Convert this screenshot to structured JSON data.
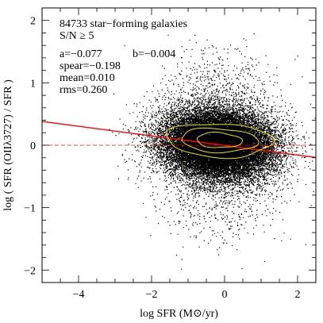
{
  "chart_data": {
    "type": "scatter",
    "xlabel": "log SFR (M⊙/yr)",
    "ylabel": "log ( SFR (OIIλ3727) / SFR )",
    "xlim": [
      -5,
      2.5
    ],
    "ylim": [
      -2.2,
      2.2
    ],
    "x_ticks": [
      -4,
      -2,
      0,
      2
    ],
    "x_tick_labels": [
      "−4",
      "−2",
      "0",
      "2"
    ],
    "y_ticks": [
      -2,
      -1,
      0,
      1,
      2
    ],
    "y_tick_labels": [
      "−2",
      "−1",
      "0",
      "1",
      "2"
    ],
    "annotations": [
      "84733 star−forming galaxies",
      "S/N ≥ 5",
      "a=−0.077",
      "b=−0.004",
      "spear=−0.198",
      "mean=0.010",
      "rms=0.260"
    ],
    "point_cloud": {
      "count": 84733,
      "center_x": -0.2,
      "center_y": 0.02,
      "spread_x": 0.75,
      "spread_y": 0.26,
      "x_range": [
        -3.3,
        2.5
      ],
      "y_range": [
        -2.0,
        1.8
      ]
    },
    "fit_line": {
      "a": -0.077,
      "b": -0.004,
      "color": "#ff0000"
    },
    "reference_line": {
      "y": 0,
      "color": "#ff0000",
      "style": "dashed"
    },
    "contours": {
      "color": "#e6e600",
      "center_x": -0.15,
      "center_y": 0.08,
      "levels": [
        {
          "rx": 1.45,
          "ry": 0.27
        },
        {
          "rx": 1.05,
          "ry": 0.19
        },
        {
          "rx": 0.62,
          "ry": 0.12
        }
      ]
    },
    "grid": false,
    "legend": "none"
  }
}
